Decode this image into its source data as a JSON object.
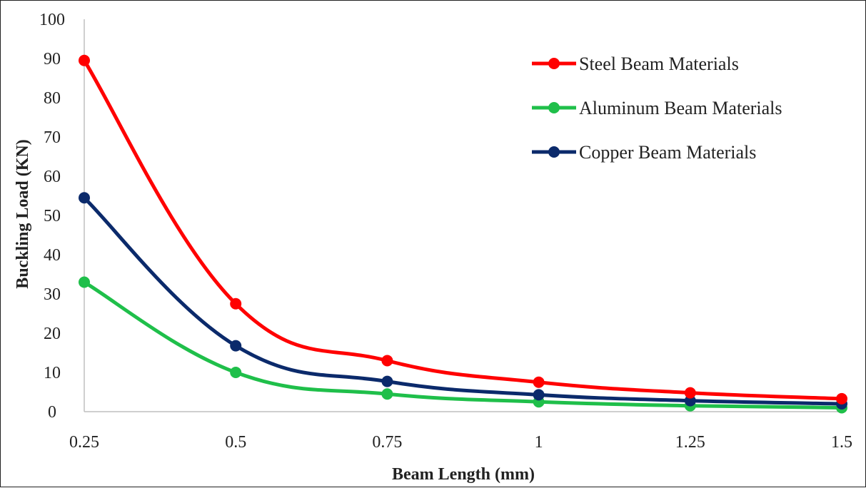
{
  "chart_data": {
    "type": "line",
    "title": "",
    "xlabel": "Beam Length (mm)",
    "ylabel": "Buckling Load  (KN)",
    "x": [
      0.25,
      0.5,
      0.75,
      1,
      1.25,
      1.5
    ],
    "x_tick_labels": [
      "0.25",
      "0.5",
      "0.75",
      "1",
      "1.25",
      "1.5"
    ],
    "ylim": [
      0,
      100
    ],
    "y_ticks": [
      0,
      10,
      20,
      30,
      40,
      50,
      60,
      70,
      80,
      90,
      100
    ],
    "grid": false,
    "smoothed": true,
    "legend_position": "top-right",
    "series": [
      {
        "name": "Steel Beam Materials",
        "color": "#ff0000",
        "values": [
          89.5,
          27.5,
          13.0,
          7.5,
          4.8,
          3.3
        ]
      },
      {
        "name": "Aluminum Beam Materials",
        "color": "#1fbf4a",
        "values": [
          33.0,
          10.0,
          4.5,
          2.5,
          1.5,
          1.0
        ]
      },
      {
        "name": "Copper Beam Materials",
        "color": "#0b2a6b",
        "values": [
          54.5,
          16.8,
          7.7,
          4.3,
          2.8,
          2.0
        ]
      }
    ]
  }
}
